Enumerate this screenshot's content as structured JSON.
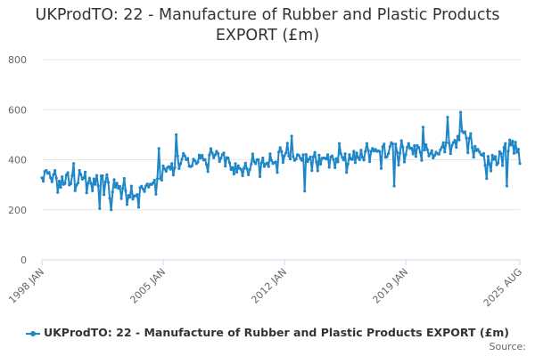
{
  "title_line1": "UKProdTO: 22 - Manufacture of Rubber and Plastic Products",
  "title_line2": "EXPORT (£m)",
  "legend_label": "UKProdTO: 22 - Manufacture of Rubber and Plastic Products EXPORT (£m)",
  "credits": "Source:",
  "colors": {
    "series": "#1f86c8",
    "grid": "#e6e6e6",
    "axis": "#ccd6eb"
  },
  "chart_data": {
    "type": "line",
    "title": "UKProdTO: 22 - Manufacture of Rubber and Plastic Products EXPORT (£m)",
    "xlabel": "",
    "ylabel": "",
    "ylim": [
      0,
      800
    ],
    "y_ticks": [
      0,
      200,
      400,
      600,
      800
    ],
    "x_ticks": [
      "1998 JAN",
      "2005 JAN",
      "2012 JAN",
      "2019 JAN",
      "2025 AUG"
    ],
    "x_start": "1998-01",
    "x_end": "2025-08",
    "frequency": "monthly",
    "grid": true,
    "legend": "bottom",
    "series": [
      {
        "name": "UKProdTO: 22 - Manufacture of Rubber and Plastic Products EXPORT (£m)",
        "anchors": [
          [
            "1998-01",
            320
          ],
          [
            "1998-07",
            345
          ],
          [
            "1999-01",
            300
          ],
          [
            "1999-07",
            330
          ],
          [
            "2000-01",
            310
          ],
          [
            "2000-07",
            335
          ],
          [
            "2001-01",
            300
          ],
          [
            "2001-07",
            320
          ],
          [
            "2002-01",
            290
          ],
          [
            "2002-07",
            300
          ],
          [
            "2003-01",
            270
          ],
          [
            "2003-07",
            265
          ],
          [
            "2004-01",
            290
          ],
          [
            "2004-07",
            310
          ],
          [
            "2005-01",
            355
          ],
          [
            "2005-07",
            370
          ],
          [
            "2006-01",
            400
          ],
          [
            "2006-07",
            395
          ],
          [
            "2007-01",
            400
          ],
          [
            "2007-07",
            405
          ],
          [
            "2008-01",
            415
          ],
          [
            "2008-07",
            420
          ],
          [
            "2009-01",
            360
          ],
          [
            "2009-07",
            370
          ],
          [
            "2010-01",
            380
          ],
          [
            "2010-07",
            385
          ],
          [
            "2011-01",
            395
          ],
          [
            "2011-07",
            410
          ],
          [
            "2012-01",
            430
          ],
          [
            "2012-07",
            420
          ],
          [
            "2013-01",
            410
          ],
          [
            "2013-07",
            400
          ],
          [
            "2014-01",
            405
          ],
          [
            "2014-07",
            410
          ],
          [
            "2015-01",
            400
          ],
          [
            "2015-07",
            405
          ],
          [
            "2016-01",
            410
          ],
          [
            "2016-07",
            420
          ],
          [
            "2017-01",
            425
          ],
          [
            "2017-07",
            430
          ],
          [
            "2018-01",
            435
          ],
          [
            "2018-07",
            445
          ],
          [
            "2019-01",
            430
          ],
          [
            "2019-07",
            440
          ],
          [
            "2020-01",
            450
          ],
          [
            "2020-07",
            430
          ],
          [
            "2021-01",
            440
          ],
          [
            "2021-07",
            460
          ],
          [
            "2022-01",
            480
          ],
          [
            "2022-07",
            500
          ],
          [
            "2023-01",
            430
          ],
          [
            "2023-07",
            415
          ],
          [
            "2024-01",
            400
          ],
          [
            "2024-07",
            410
          ],
          [
            "2025-01",
            455
          ],
          [
            "2025-08",
            430
          ]
        ],
        "highlights": [
          [
            "1999-11",
            385
          ],
          [
            "2001-05",
            205
          ],
          [
            "2002-01",
            200
          ],
          [
            "2004-10",
            445
          ],
          [
            "2005-10",
            500
          ],
          [
            "2012-06",
            495
          ],
          [
            "2013-03",
            275
          ],
          [
            "2015-03",
            465
          ],
          [
            "2018-05",
            295
          ],
          [
            "2020-01",
            530
          ],
          [
            "2021-06",
            570
          ],
          [
            "2022-03",
            590
          ],
          [
            "2023-09",
            325
          ],
          [
            "2024-11",
            295
          ],
          [
            "2025-05",
            470
          ]
        ]
      }
    ]
  }
}
